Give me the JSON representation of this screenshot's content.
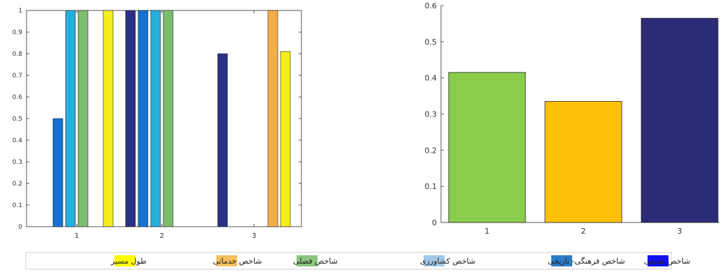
{
  "chart_data": [
    {
      "type": "bar",
      "title": "",
      "xlabel": "",
      "ylabel": "",
      "categories": [
        "1",
        "2",
        "3"
      ],
      "ylim": [
        0,
        1
      ],
      "yticks": [
        "0",
        "0.1",
        "0.2",
        "0.3",
        "0.4",
        "0.5",
        "0.6",
        "0.7",
        "0.8",
        "0.9",
        "1"
      ],
      "grid": false,
      "series": [
        {
          "name": "شاخص طبیعی",
          "color": "#2b2f86",
          "values": [
            0,
            1,
            0.8
          ]
        },
        {
          "name": "",
          "color": "#1372d4",
          "values": [
            0.5,
            1,
            0
          ]
        },
        {
          "name": "شاخص فرهنگی- تاریخی",
          "color": "#26afdc",
          "values": [
            1,
            1,
            0
          ]
        },
        {
          "name": "شاخص کشاورزی",
          "color": "#7dbd6e",
          "values": [
            1,
            1,
            0
          ]
        },
        {
          "name": "شاخص فصلی",
          "color": "#f2ae48",
          "values": [
            0,
            0,
            1
          ]
        },
        {
          "name": "شاخص خدماتی",
          "color": "#f5ee1e",
          "values": [
            1,
            0,
            0.81
          ]
        }
      ]
    },
    {
      "type": "bar",
      "title": "",
      "xlabel": "",
      "ylabel": "",
      "categories": [
        "1",
        "2",
        "3"
      ],
      "values": [
        0.415,
        0.335,
        0.565
      ],
      "colors": [
        "#8acc4b",
        "#ffc107",
        "#2b2b78"
      ],
      "ylim": [
        0,
        0.6
      ],
      "yticks": [
        "0",
        "0.1",
        "0.2",
        "0.3",
        "0.4",
        "0.5",
        "0.6"
      ],
      "grid": false
    }
  ],
  "legend": {
    "placement": "bottom",
    "items": [
      {
        "label": "شاخص طبیعی",
        "color": "#1010f0"
      },
      {
        "label": "شاخص فرهنگی- تاریخی",
        "color": "#2d7bc6"
      },
      {
        "label": "شاخص کشاورزی",
        "color": "#a0c8e8"
      },
      {
        "label": "شاخص فصلی",
        "color": "#8cc47e"
      },
      {
        "label": "شاخص خدماتی",
        "color": "#f5c060"
      },
      {
        "label": "طول مسیر",
        "color": "#ffff00"
      }
    ]
  }
}
